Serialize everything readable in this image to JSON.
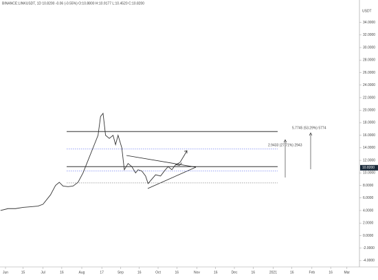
{
  "chart_data": {
    "type": "line",
    "header": "BINANCE:LINKUSDT, 1D 10.8200 -0.06 (-0.55%) O:10.8800 H:10.9177 L:10.4520 C:10.8200",
    "y_unit": "USDT",
    "series": [
      {
        "name": "LINKUSDT",
        "color": "#333333",
        "x": [
          -4,
          2,
          8,
          14,
          20,
          26,
          30,
          36,
          40,
          43,
          46,
          50,
          54,
          58,
          62,
          66,
          70,
          74,
          76,
          78,
          80,
          83,
          86,
          88,
          90,
          93,
          95,
          98,
          101,
          104,
          106,
          109,
          112,
          114,
          117,
          120,
          124,
          127,
          130,
          133,
          136,
          139,
          141
        ],
        "values": [
          4.0,
          4.3,
          4.3,
          4.5,
          4.6,
          4.7,
          5.0,
          6.5,
          8.0,
          8.5,
          7.9,
          7.8,
          7.9,
          8.5,
          10.0,
          12.0,
          14.0,
          16.0,
          19.0,
          19.5,
          16.0,
          15.5,
          16.0,
          14.5,
          16.0,
          14.0,
          10.5,
          11.5,
          11.0,
          10.0,
          10.5,
          10.3,
          9.5,
          8.3,
          9.0,
          9.7,
          9.5,
          10.3,
          11.0,
          10.5,
          11.3,
          11.2,
          11.6
        ]
      }
    ],
    "last_price": {
      "value": 10.82,
      "label": "10.8200"
    },
    "levels": [
      16.6,
      11.0
    ],
    "dashed_levels": [
      13.8,
      10.3,
      8.4
    ],
    "annotations": [
      "5.7745 (53.29%) 5774",
      "2.9433 (27.71%) 2943"
    ],
    "xlim": [
      -4.4,
      283
    ],
    "xticks": [
      {
        "value": 0,
        "label": "Jun"
      },
      {
        "value": 14,
        "label": "15"
      },
      {
        "value": 30,
        "label": "Jul"
      },
      {
        "value": 45,
        "label": "16"
      },
      {
        "value": 61,
        "label": "Aug"
      },
      {
        "value": 77,
        "label": "17"
      },
      {
        "value": 92,
        "label": "Sep"
      },
      {
        "value": 107,
        "label": "16"
      },
      {
        "value": 122,
        "label": "Oct"
      },
      {
        "value": 137,
        "label": "16"
      },
      {
        "value": 153,
        "label": "Nov"
      },
      {
        "value": 168,
        "label": "16"
      },
      {
        "value": 183,
        "label": "Dec"
      },
      {
        "value": 198,
        "label": "16"
      },
      {
        "value": 214,
        "label": "2021"
      },
      {
        "value": 229,
        "label": "16"
      },
      {
        "value": 245,
        "label": "Feb"
      },
      {
        "value": 260,
        "label": "16"
      },
      {
        "value": 273,
        "label": "Mar"
      }
    ],
    "ylim": [
      -5,
      36.7
    ],
    "yticks": [
      {
        "value": 34,
        "label": "34.0000"
      },
      {
        "value": 32,
        "label": "32.0000"
      },
      {
        "value": 30,
        "label": "30.0000"
      },
      {
        "value": 28,
        "label": "28.0000"
      },
      {
        "value": 26,
        "label": "26.0000"
      },
      {
        "value": 24,
        "label": "24.0000"
      },
      {
        "value": 22,
        "label": "22.0000"
      },
      {
        "value": 20,
        "label": "20.0000"
      },
      {
        "value": 18,
        "label": "18.0000"
      },
      {
        "value": 16,
        "label": "16.0000"
      },
      {
        "value": 14,
        "label": "14.0000"
      },
      {
        "value": 12,
        "label": "12.0000"
      },
      {
        "value": 10,
        "label": "10.0000"
      },
      {
        "value": 8,
        "label": "8.0000"
      },
      {
        "value": 6,
        "label": "6.0000"
      },
      {
        "value": 4,
        "label": "4.0000"
      },
      {
        "value": 2,
        "label": "2.0000"
      },
      {
        "value": 0,
        "label": "0.0000"
      },
      {
        "value": -2,
        "label": "-2.0000"
      },
      {
        "value": -4,
        "label": "-4.0000"
      }
    ],
    "grid": false
  }
}
